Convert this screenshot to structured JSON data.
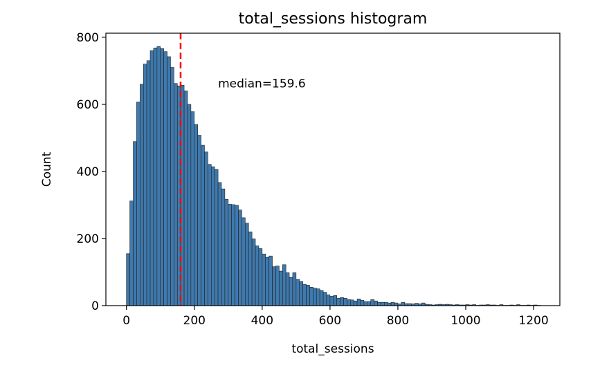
{
  "chart_data": {
    "type": "bar",
    "title": "total_sessions histogram",
    "xlabel": "total_sessions",
    "ylabel": "Count",
    "xlim": [
      -60.6,
      1277.4
    ],
    "ylim": [
      0,
      812
    ],
    "bin_start": 0,
    "bin_width": 10,
    "values": [
      155,
      312,
      489,
      607,
      660,
      720,
      730,
      760,
      768,
      772,
      766,
      757,
      742,
      710,
      662,
      655,
      657,
      640,
      600,
      578,
      540,
      508,
      478,
      458,
      421,
      414,
      406,
      367,
      348,
      317,
      302,
      301,
      299,
      285,
      262,
      246,
      220,
      199,
      178,
      170,
      154,
      144,
      148,
      116,
      118,
      103,
      122,
      98,
      84,
      98,
      78,
      72,
      63,
      61,
      55,
      52,
      50,
      45,
      40,
      32,
      28,
      30,
      22,
      24,
      22,
      18,
      17,
      14,
      20,
      16,
      12,
      12,
      18,
      14,
      10,
      10,
      10,
      8,
      10,
      8,
      5,
      10,
      6,
      6,
      5,
      7,
      5,
      8,
      4,
      3,
      2,
      3,
      4,
      3,
      4,
      3,
      2,
      3,
      2,
      2,
      3,
      2,
      3,
      1,
      2,
      2,
      3,
      2,
      2,
      1,
      3,
      1,
      1,
      2,
      1,
      3,
      1,
      1,
      2,
      1,
      2,
      1
    ],
    "bar_color": "#3f79ad",
    "bar_edge_color": "#1f1f1f",
    "median": 159.6,
    "median_color": "#ff0000",
    "annotation": "median=159.6",
    "annotation_color": "#ff0000",
    "xticks": [
      0,
      200,
      400,
      600,
      800,
      1000,
      1200
    ],
    "yticks": [
      0,
      200,
      400,
      600,
      800
    ],
    "grid": false,
    "legend": false
  }
}
